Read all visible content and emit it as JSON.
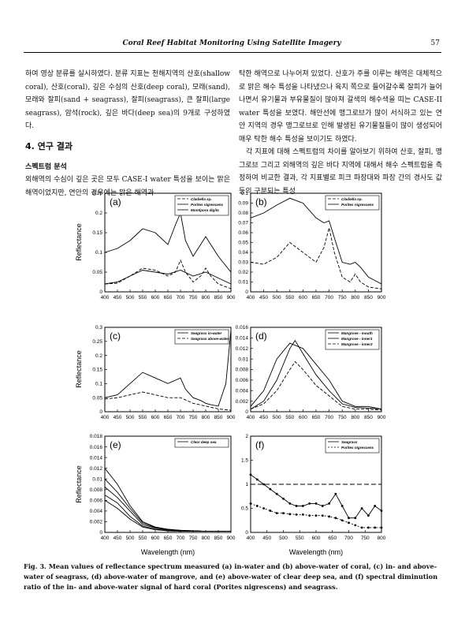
{
  "header": {
    "running_title": "Coral Reef Habitat Monitoring Using Satellite Imagery",
    "page_number": "57"
  },
  "body": {
    "left_intro": "하여 영상 분류를 실시하였다. 분류 지표는 천해지역의 산호(shallow coral), 산호(coral), 깊은 수심의 산호(deep coral), 모래(sand), 모래와 잘피(sand + seagrass), 잘피(seagrass), 큰 잘피(large seagrass), 암석(rock), 깊은 바다(deep sea)의 9개로 구성하였다.",
    "section_heading": "4. 연구 결과",
    "subsection_heading": "스펙트럼 분석",
    "left_para": "외해역의 수심이 깊은 곳은 모두 CASE-I water 특성을 보이는 맑은 해역이었지만, 연안의 경우에는 맑은 해역과",
    "right_para1": "탁한 해역으로 나누어져 있었다. 산호가 주를 이루는 해역은 대체적으로 맑은 해수 특성을 나타냈으나 육지 쪽으로 들어갈수록 잘피가 늘어나면서 유기물과 부유물질이 많아져 갈색의 해수색을 띠는 CASE-II water 특성을 보였다. 해안선에 맹그로브가 많이 서식하고 있는 연안 지역의 경우 맹그로브로 인해 발생된 유기물질들이 많이 생성되어 매우 탁한 해수 특성을 보이기도 하였다.",
    "right_para2": "각 지표에 대해 스펙트럼의 차이를 알아보기 위하여 산호, 잘피, 맹그로브 그리고 외해역의 깊은 바다 지역에 대해서 해수 스펙트럼을 측정하여 비교한 결과, 각 지표별로 피크 파장대와 파장 간의 경사도 값 등의 구분되는 특성"
  },
  "figure": {
    "caption": "Fig. 3. Mean values of reflectance spectrum measured (a) in-water and (b) above-water of coral, (c) in- and above-water of seagrass, (d) above-water of mangrove, and (e) above-water of clear deep sea, and (f) spectral diminution ratio of the in- and above-water signal of hard coral (Porites nigrescens) and seagrass.",
    "ylabel": "Reflectance",
    "xlabel": "Wavelength (nm)"
  },
  "chart_data": [
    {
      "panel": "(a)",
      "type": "line",
      "xlim": [
        400,
        900
      ],
      "ylim": [
        0,
        0.25
      ],
      "xticks": [
        "400",
        "450",
        "500",
        "550",
        "600",
        "650",
        "700",
        "750",
        "800",
        "850",
        "900"
      ],
      "yticks": [
        "0",
        "0.05",
        "0.1",
        "0.15",
        "0.2",
        "0.25"
      ],
      "series": [
        {
          "name": "Cladiella sp.",
          "style": "dashed",
          "x": [
            400,
            450,
            500,
            550,
            600,
            650,
            680,
            700,
            720,
            750,
            780,
            800,
            820,
            850,
            900
          ],
          "y": [
            0.02,
            0.022,
            0.04,
            0.06,
            0.055,
            0.04,
            0.05,
            0.08,
            0.05,
            0.025,
            0.04,
            0.06,
            0.04,
            0.02,
            0.008
          ]
        },
        {
          "name": "Porites nigrescens",
          "style": "solid",
          "x": [
            400,
            450,
            500,
            550,
            600,
            650,
            680,
            700,
            720,
            750,
            780,
            800,
            820,
            850,
            900
          ],
          "y": [
            0.1,
            0.11,
            0.13,
            0.16,
            0.15,
            0.12,
            0.17,
            0.2,
            0.13,
            0.09,
            0.12,
            0.14,
            0.12,
            0.09,
            0.05
          ]
        },
        {
          "name": "Montipora digita",
          "style": "solid",
          "x": [
            400,
            450,
            500,
            550,
            600,
            650,
            700,
            750,
            800,
            850,
            900
          ],
          "y": [
            0.02,
            0.025,
            0.04,
            0.055,
            0.05,
            0.045,
            0.055,
            0.04,
            0.05,
            0.035,
            0.02
          ]
        }
      ]
    },
    {
      "panel": "(b)",
      "type": "line",
      "xlim": [
        400,
        900
      ],
      "ylim": [
        0,
        0.1
      ],
      "xticks": [
        "400",
        "450",
        "500",
        "550",
        "600",
        "650",
        "700",
        "750",
        "800",
        "850",
        "900"
      ],
      "yticks": [
        "0",
        "0.01",
        "0.02",
        "0.03",
        "0.04",
        "0.05",
        "0.06",
        "0.07",
        "0.08",
        "0.09",
        "0.1"
      ],
      "series": [
        {
          "name": "Cladiella sp.",
          "style": "dashed",
          "x": [
            400,
            450,
            500,
            550,
            600,
            650,
            680,
            700,
            720,
            750,
            780,
            800,
            820,
            850,
            900
          ],
          "y": [
            0.03,
            0.028,
            0.035,
            0.05,
            0.04,
            0.03,
            0.045,
            0.065,
            0.04,
            0.015,
            0.01,
            0.018,
            0.01,
            0.005,
            0.003
          ]
        },
        {
          "name": "Porites nigrescens",
          "style": "solid",
          "x": [
            400,
            450,
            500,
            550,
            600,
            650,
            680,
            700,
            720,
            750,
            780,
            800,
            820,
            850,
            900
          ],
          "y": [
            0.075,
            0.08,
            0.088,
            0.095,
            0.09,
            0.075,
            0.07,
            0.072,
            0.055,
            0.03,
            0.028,
            0.03,
            0.025,
            0.015,
            0.008
          ]
        }
      ]
    },
    {
      "panel": "(c)",
      "type": "line",
      "xlim": [
        400,
        900
      ],
      "ylim": [
        0,
        0.3
      ],
      "xticks": [
        "400",
        "450",
        "500",
        "550",
        "600",
        "650",
        "700",
        "750",
        "800",
        "850",
        "900"
      ],
      "yticks": [
        "0",
        "0.05",
        "0.1",
        "0.15",
        "0.2",
        "0.25",
        "0.3"
      ],
      "series": [
        {
          "name": "Seagrass in-water",
          "style": "solid",
          "x": [
            400,
            450,
            500,
            550,
            600,
            650,
            700,
            720,
            750,
            780,
            800,
            820,
            850,
            880,
            900
          ],
          "y": [
            0.05,
            0.06,
            0.1,
            0.14,
            0.12,
            0.1,
            0.12,
            0.08,
            0.05,
            0.04,
            0.03,
            0.025,
            0.02,
            0.1,
            0.29
          ]
        },
        {
          "name": "Seagrass above-water",
          "style": "dashed",
          "x": [
            400,
            450,
            500,
            550,
            600,
            650,
            700,
            750,
            800,
            850,
            900
          ],
          "y": [
            0.045,
            0.05,
            0.06,
            0.07,
            0.06,
            0.05,
            0.05,
            0.03,
            0.02,
            0.01,
            0.005
          ]
        }
      ]
    },
    {
      "panel": "(d)",
      "type": "line",
      "xlim": [
        400,
        900
      ],
      "ylim": [
        0,
        0.016
      ],
      "xticks": [
        "400",
        "450",
        "500",
        "550",
        "600",
        "650",
        "700",
        "750",
        "800",
        "850",
        "900"
      ],
      "yticks": [
        "0",
        "0.002",
        "0.004",
        "0.006",
        "0.008",
        "0.01",
        "0.012",
        "0.014",
        "0.016"
      ],
      "series": [
        {
          "name": "Mangrove - mouth",
          "style": "solid",
          "x": [
            400,
            450,
            500,
            550,
            600,
            650,
            700,
            750,
            800,
            850,
            900
          ],
          "y": [
            0.001,
            0.004,
            0.01,
            0.013,
            0.012,
            0.009,
            0.006,
            0.002,
            0.001,
            0.001,
            0.0005
          ]
        },
        {
          "name": "Mangrove - inner1",
          "style": "solid",
          "x": [
            400,
            450,
            500,
            550,
            570,
            600,
            650,
            700,
            750,
            800,
            850,
            900
          ],
          "y": [
            0.0005,
            0.002,
            0.006,
            0.012,
            0.0135,
            0.011,
            0.007,
            0.004,
            0.0015,
            0.0008,
            0.0007,
            0.0005
          ]
        },
        {
          "name": "Mangrove - inner2",
          "style": "dashed",
          "x": [
            400,
            450,
            500,
            550,
            570,
            600,
            650,
            700,
            750,
            800,
            850,
            900
          ],
          "y": [
            0.0005,
            0.0015,
            0.004,
            0.008,
            0.0095,
            0.008,
            0.005,
            0.003,
            0.001,
            0.0005,
            0.0005,
            0.0003
          ]
        }
      ]
    },
    {
      "panel": "(e)",
      "type": "line",
      "xlim": [
        400,
        900
      ],
      "ylim": [
        0,
        0.018
      ],
      "xticks": [
        "400",
        "450",
        "500",
        "550",
        "600",
        "650",
        "700",
        "750",
        "800",
        "850",
        "900"
      ],
      "yticks": [
        "0",
        "0.002",
        "0.004",
        "0.006",
        "0.008",
        "0.01",
        "0.012",
        "0.014",
        "0.016",
        "0.018"
      ],
      "series": [
        {
          "name": "Clear deep sea",
          "style": "solid",
          "x": [
            400,
            450,
            500,
            550,
            600,
            650,
            700,
            750,
            800,
            850,
            900
          ],
          "y": [
            0.012,
            0.009,
            0.005,
            0.002,
            0.001,
            0.0006,
            0.0004,
            0.0003,
            0.0002,
            0.0002,
            0.0002
          ]
        },
        {
          "name": "",
          "style": "solid",
          "x": [
            400,
            450,
            500,
            550,
            600,
            650,
            700,
            750,
            800,
            850,
            900
          ],
          "y": [
            0.01,
            0.0075,
            0.0045,
            0.0018,
            0.0009,
            0.0005,
            0.0004,
            0.0003,
            0.0002,
            0.0002,
            0.0002
          ]
        },
        {
          "name": "",
          "style": "solid",
          "x": [
            400,
            450,
            500,
            550,
            600,
            650,
            700,
            750,
            800,
            850,
            900
          ],
          "y": [
            0.0085,
            0.0065,
            0.004,
            0.0015,
            0.0008,
            0.0005,
            0.0003,
            0.0003,
            0.0002,
            0.0002,
            0.0002
          ]
        },
        {
          "name": "",
          "style": "solid",
          "x": [
            400,
            450,
            500,
            550,
            600,
            650,
            700,
            750,
            800,
            850,
            900
          ],
          "y": [
            0.007,
            0.0055,
            0.003,
            0.0012,
            0.0006,
            0.0004,
            0.0003,
            0.0002,
            0.0002,
            0.0002,
            0.0002
          ]
        },
        {
          "name": "",
          "style": "solid",
          "x": [
            400,
            450,
            500,
            550,
            600,
            650,
            700,
            750,
            800,
            850,
            900
          ],
          "y": [
            0.006,
            0.0045,
            0.0025,
            0.001,
            0.0005,
            0.0003,
            0.0002,
            0.0002,
            0.0002,
            0.0002,
            0.0002
          ]
        }
      ]
    },
    {
      "panel": "(f)",
      "type": "line",
      "xlim": [
        400,
        800
      ],
      "ylim": [
        0,
        2
      ],
      "xticks": [
        "400",
        "450",
        "500",
        "550",
        "600",
        "650",
        "700",
        "750",
        "800"
      ],
      "yticks": [
        "0",
        "0.5",
        "1",
        "1.5",
        "2"
      ],
      "reference_line": 1,
      "series": [
        {
          "name": "Seagrass",
          "style": "solid-markers",
          "x": [
            400,
            420,
            440,
            460,
            480,
            500,
            520,
            540,
            560,
            580,
            600,
            620,
            640,
            660,
            680,
            700,
            720,
            740,
            760,
            780,
            800
          ],
          "y": [
            1.2,
            1.1,
            1.0,
            0.9,
            0.8,
            0.7,
            0.6,
            0.55,
            0.55,
            0.6,
            0.6,
            0.55,
            0.6,
            0.8,
            0.55,
            0.3,
            0.3,
            0.5,
            0.35,
            0.55,
            0.45
          ]
        },
        {
          "name": "Porites nigrescens",
          "style": "dotted-markers",
          "x": [
            400,
            420,
            440,
            460,
            480,
            500,
            520,
            540,
            560,
            580,
            600,
            620,
            640,
            660,
            680,
            700,
            720,
            740,
            760,
            780,
            800
          ],
          "y": [
            0.6,
            0.55,
            0.5,
            0.45,
            0.4,
            0.4,
            0.38,
            0.37,
            0.37,
            0.35,
            0.35,
            0.35,
            0.33,
            0.3,
            0.25,
            0.2,
            0.15,
            0.1,
            0.1,
            0.1,
            0.1
          ]
        }
      ]
    }
  ]
}
